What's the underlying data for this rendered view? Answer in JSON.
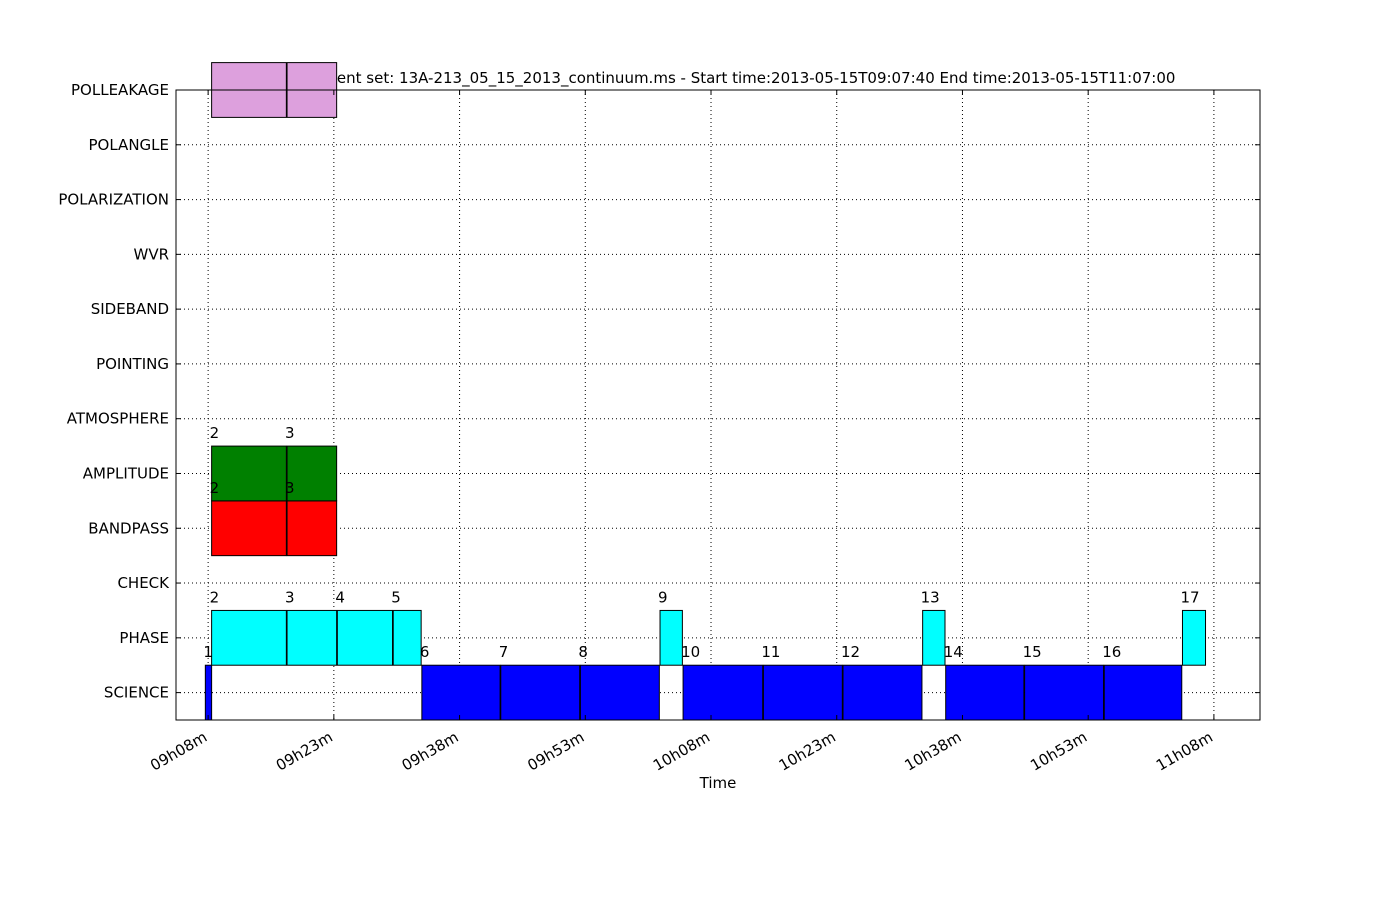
{
  "chart_data": {
    "type": "timeline",
    "title": "Measurement set: 13A-213_05_15_2013_continuum.ms - Start time:2013-05-15T09:07:40 End time:2013-05-15T11:07:00",
    "xlabel": "Time",
    "ylabel": "",
    "grid": true,
    "x_ticks": [
      "09h08m",
      "09h23m",
      "09h38m",
      "09h53m",
      "10h08m",
      "10h23m",
      "10h38m",
      "10h53m",
      "11h08m"
    ],
    "xlim": [
      "09:04:10",
      "11:13:30"
    ],
    "intents": [
      "SCIENCE",
      "PHASE",
      "CHECK",
      "BANDPASS",
      "AMPLITUDE",
      "ATMOSPHERE",
      "POINTING",
      "SIDEBAND",
      "WVR",
      "POLARIZATION",
      "POLANGLE",
      "POLLEAKAGE"
    ],
    "colors": {
      "SCIENCE": "#0000ff",
      "PHASE": "#00ffff",
      "BANDPASS": "#ff0000",
      "AMPLITUDE": "#008000",
      "POLLEAKAGE": "#dda0dd"
    },
    "scans": [
      {
        "intent": "SCIENCE",
        "start": "09:07:40",
        "end": "09:08:25",
        "label": "1"
      },
      {
        "intent": "SCIENCE",
        "start": "09:33:30",
        "end": "09:42:50",
        "label": "6"
      },
      {
        "intent": "SCIENCE",
        "start": "09:42:55",
        "end": "09:52:20",
        "label": "7"
      },
      {
        "intent": "SCIENCE",
        "start": "09:52:25",
        "end": "10:01:50",
        "label": "8"
      },
      {
        "intent": "SCIENCE",
        "start": "10:04:40",
        "end": "10:14:10",
        "label": "10"
      },
      {
        "intent": "SCIENCE",
        "start": "10:14:15",
        "end": "10:23:40",
        "label": "11"
      },
      {
        "intent": "SCIENCE",
        "start": "10:23:45",
        "end": "10:33:10",
        "label": "12"
      },
      {
        "intent": "SCIENCE",
        "start": "10:36:00",
        "end": "10:45:20",
        "label": "14"
      },
      {
        "intent": "SCIENCE",
        "start": "10:45:25",
        "end": "10:54:50",
        "label": "15"
      },
      {
        "intent": "SCIENCE",
        "start": "10:54:55",
        "end": "11:04:10",
        "label": "16"
      },
      {
        "intent": "PHASE",
        "start": "09:08:25",
        "end": "09:17:20",
        "label": "2"
      },
      {
        "intent": "PHASE",
        "start": "09:17:25",
        "end": "09:23:20",
        "label": "3"
      },
      {
        "intent": "PHASE",
        "start": "09:23:25",
        "end": "09:30:00",
        "label": "4"
      },
      {
        "intent": "PHASE",
        "start": "09:30:05",
        "end": "09:33:25",
        "label": "5"
      },
      {
        "intent": "PHASE",
        "start": "10:01:55",
        "end": "10:04:35",
        "label": "9"
      },
      {
        "intent": "PHASE",
        "start": "10:33:15",
        "end": "10:35:55",
        "label": "13"
      },
      {
        "intent": "PHASE",
        "start": "11:04:15",
        "end": "11:07:00",
        "label": "17"
      },
      {
        "intent": "BANDPASS",
        "start": "09:08:25",
        "end": "09:17:20",
        "label": "2"
      },
      {
        "intent": "BANDPASS",
        "start": "09:17:25",
        "end": "09:23:20",
        "label": "3"
      },
      {
        "intent": "AMPLITUDE",
        "start": "09:08:25",
        "end": "09:17:20",
        "label": "2"
      },
      {
        "intent": "AMPLITUDE",
        "start": "09:17:25",
        "end": "09:23:20",
        "label": "3"
      },
      {
        "intent": "POLLEAKAGE",
        "start": "09:08:25",
        "end": "09:17:20",
        "label": ""
      },
      {
        "intent": "POLLEAKAGE",
        "start": "09:17:25",
        "end": "09:23:20",
        "label": ""
      }
    ]
  }
}
